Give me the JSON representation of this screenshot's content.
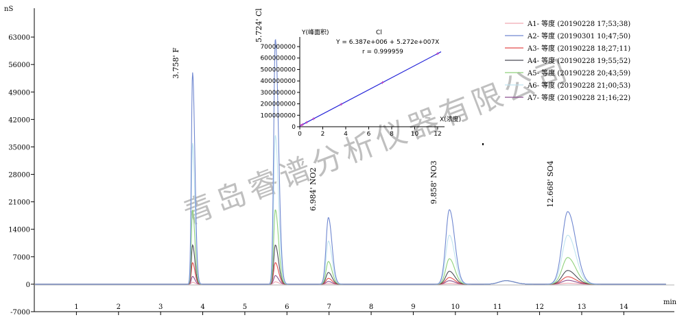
{
  "chart_data": {
    "type": "line",
    "x_unit": "min",
    "y_unit": "nS",
    "xlim": [
      0,
      15.2
    ],
    "ylim": [
      -7000,
      70000
    ],
    "x_ticks": [
      "1",
      "2",
      "3",
      "4",
      "5",
      "6",
      "7",
      "8",
      "9",
      "10",
      "11",
      "12",
      "13",
      "14"
    ],
    "y_ticks": [
      "-7000",
      "0",
      "7000",
      "14000",
      "21000",
      "28000",
      "35000",
      "42000",
      "49000",
      "56000",
      "63000"
    ],
    "peak_labels": [
      "3.758' F",
      "5.724' Cl",
      "6.984' NO2",
      "9.858' NO3",
      "12.668' SO4"
    ],
    "peaks": [
      {
        "rt": 3.758,
        "sigma_l": 0.028,
        "sigma_r": 0.055
      },
      {
        "rt": 5.724,
        "sigma_l": 0.038,
        "sigma_r": 0.075
      },
      {
        "rt": 6.984,
        "sigma_l": 0.055,
        "sigma_r": 0.085
      },
      {
        "rt": 9.858,
        "sigma_l": 0.085,
        "sigma_r": 0.125
      },
      {
        "rt": 12.668,
        "sigma_l": 0.13,
        "sigma_r": 0.19
      },
      {
        "rt": 11.2,
        "sigma_l": 0.16,
        "sigma_r": 0.2
      }
    ],
    "series": [
      {
        "name": "A1- 等度 (20190228 17;53;38)",
        "color": "#f0a6b0",
        "heights": [
          500,
          600,
          150,
          200,
          250,
          900
        ]
      },
      {
        "name": "A2- 等度 (20190301 10;47;50)",
        "color": "#6f87d0",
        "heights": [
          54000,
          62500,
          17000,
          19000,
          18500,
          900
        ]
      },
      {
        "name": "A3- 等度 (20190228 18;27;11)",
        "color": "#e24b4b",
        "heights": [
          5500,
          5500,
          1500,
          1700,
          1900,
          900
        ]
      },
      {
        "name": "A4- 等度 (20190228 19;55;52)",
        "color": "#4a4a55",
        "heights": [
          10000,
          10000,
          3000,
          3300,
          3500,
          900
        ]
      },
      {
        "name": "A5- 等度 (20190228 20;43;59)",
        "color": "#8fd17a",
        "heights": [
          19000,
          19000,
          5800,
          6500,
          6800,
          900
        ]
      },
      {
        "name": "A6- 等度 (20190228 21;00;53)",
        "color": "#bfe4f0",
        "heights": [
          36000,
          38000,
          11000,
          12500,
          12500,
          900
        ]
      },
      {
        "name": "A7- 等度 (20190228 21;16;22)",
        "color": "#8a4e8e",
        "heights": [
          2000,
          2200,
          700,
          900,
          1000,
          900
        ]
      }
    ],
    "inset": {
      "title": "Cl",
      "equation": "Y = 6.387e+006 + 5.272e+007X",
      "r": "r = 0.999959",
      "ylabel": "Y(峰面积)",
      "xlabel": "X(浓度)",
      "xlim": [
        0,
        12.6
      ],
      "ylim": [
        0,
        760000000
      ],
      "x_ticks": [
        "0",
        "2",
        "4",
        "6",
        "8",
        "10",
        "12"
      ],
      "y_ticks": [
        "0",
        "100000000",
        "200000000",
        "300000000",
        "400000000",
        "500000000",
        "600000000",
        "700000000"
      ],
      "intercept": 6387000,
      "slope": 52720000,
      "points_x": [
        0.12,
        0.25,
        0.6,
        1.2,
        3.6,
        7.2,
        12.0
      ],
      "line_color": "#2323d8",
      "point_color": "#c040c0"
    },
    "watermark": "青岛睿谱分析仪器有限公司"
  }
}
